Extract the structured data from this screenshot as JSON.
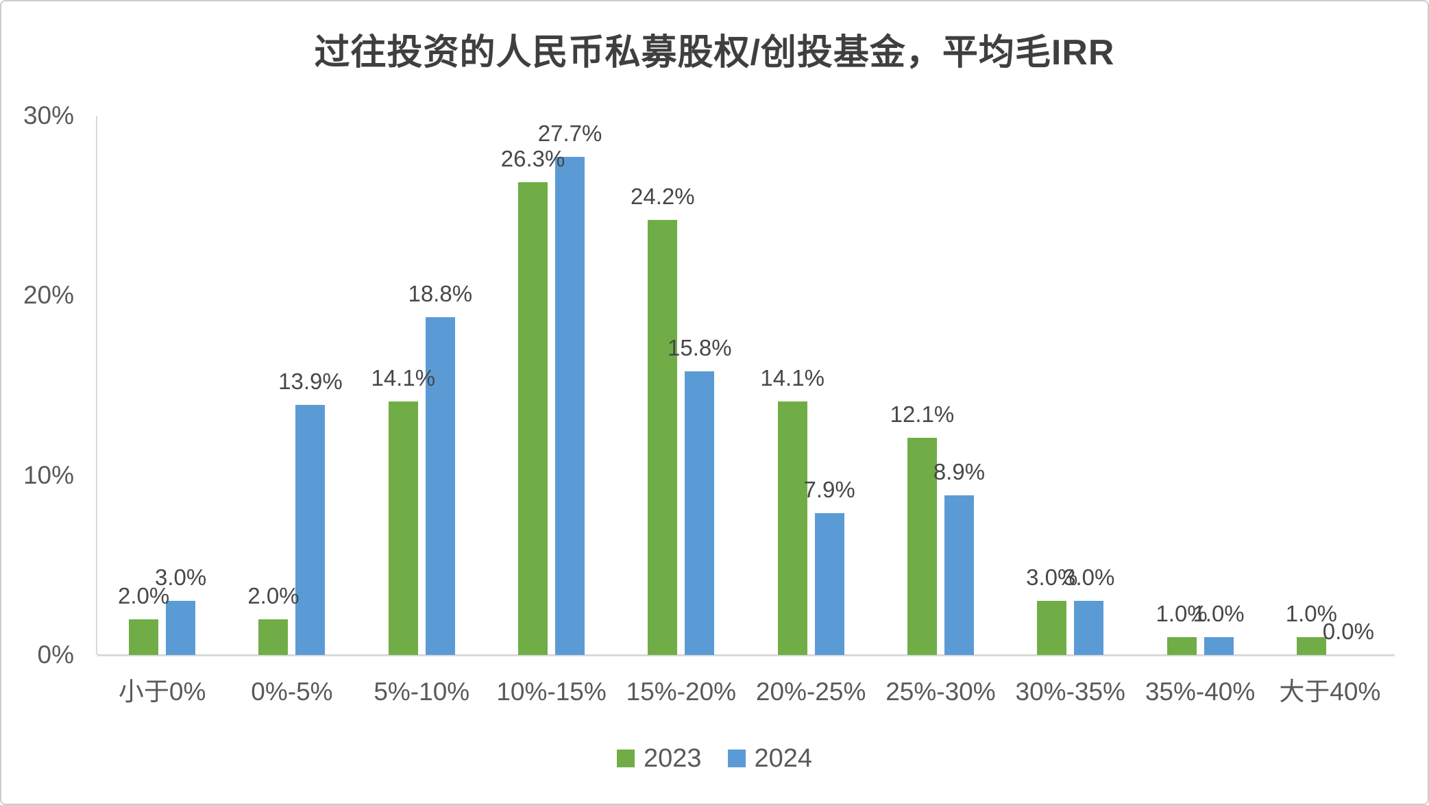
{
  "chart_data": {
    "type": "bar",
    "title": "过往投资的人民币私募股权/创投基金，平均毛IRR",
    "categories": [
      "小于0%",
      "0%-5%",
      "5%-10%",
      "10%-15%",
      "15%-20%",
      "20%-25%",
      "25%-30%",
      "30%-35%",
      "35%-40%",
      "大于40%"
    ],
    "series": [
      {
        "name": "2023",
        "color": "#70AD47",
        "values": [
          2.0,
          2.0,
          14.1,
          26.3,
          24.2,
          14.1,
          12.1,
          3.0,
          1.0,
          1.0
        ],
        "labels": [
          "2.0%",
          "2.0%",
          "14.1%",
          "26.3%",
          "24.2%",
          "14.1%",
          "12.1%",
          "3.0%",
          "1.0%",
          "1.0%"
        ]
      },
      {
        "name": "2024",
        "color": "#5B9BD5",
        "values": [
          3.0,
          13.9,
          18.8,
          27.7,
          15.8,
          7.9,
          8.9,
          3.0,
          1.0,
          0.0
        ],
        "labels": [
          "3.0%",
          "13.9%",
          "18.8%",
          "27.7%",
          "15.8%",
          "7.9%",
          "8.9%",
          "3.0%",
          "1.0%",
          "0.0%"
        ]
      }
    ],
    "xlabel": "",
    "ylabel": "",
    "ylim": [
      0,
      30
    ],
    "yticks": [
      {
        "value": 0,
        "label": "0%"
      },
      {
        "value": 10,
        "label": "10%"
      },
      {
        "value": 20,
        "label": "20%"
      },
      {
        "value": 30,
        "label": "30%"
      }
    ],
    "grid": false,
    "legend_position": "bottom"
  },
  "colors": {
    "series_2023": "#70AD47",
    "series_2024": "#5B9BD5",
    "axis_line": "#d9d9d9",
    "tick_text": "#595959",
    "data_label_text": "#474747",
    "title_text": "#3f3f3f"
  }
}
